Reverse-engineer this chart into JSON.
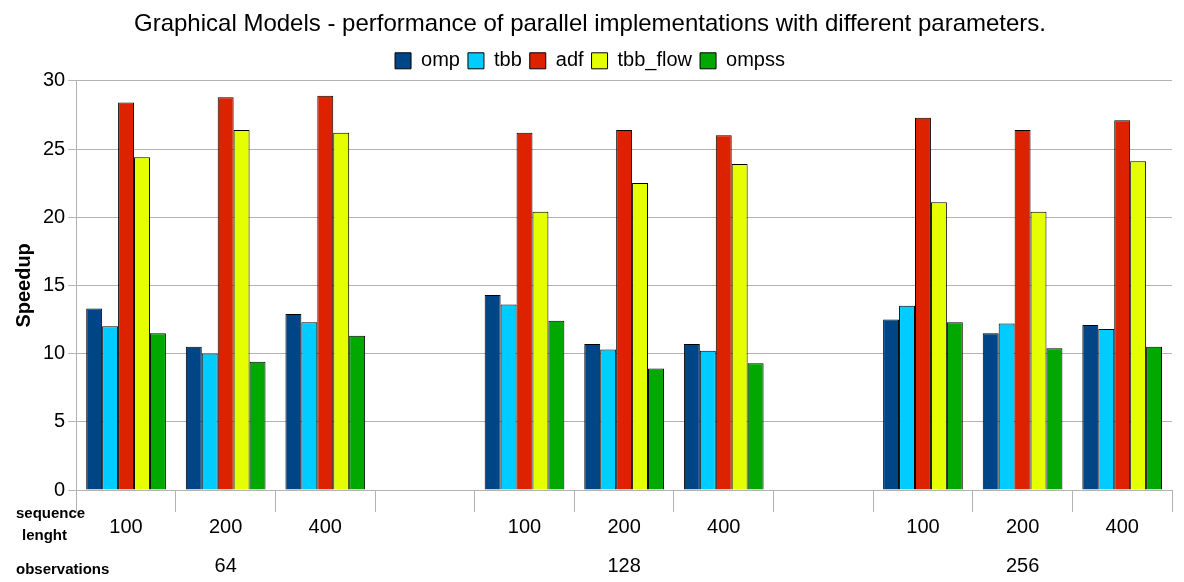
{
  "chart_data": {
    "type": "bar",
    "title": "Graphical Models - performance of parallel implementations with different parameters.",
    "ylabel": "Speedup",
    "categories": [
      "100",
      "200",
      "400",
      null,
      "100",
      "200",
      "400",
      null,
      "100",
      "200",
      "400"
    ],
    "series": [
      {
        "name": "omp",
        "color": "#004586",
        "values": [
          13.3,
          10.5,
          12.9,
          null,
          14.3,
          10.7,
          10.7,
          null,
          12.5,
          11.5,
          12.1
        ]
      },
      {
        "name": "tbb",
        "color": "#00ccff",
        "values": [
          12.0,
          10.0,
          12.3,
          null,
          13.6,
          10.3,
          10.2,
          null,
          13.5,
          12.2,
          11.8
        ]
      },
      {
        "name": "adf",
        "color": "#dd2200",
        "values": [
          28.4,
          28.8,
          28.9,
          null,
          26.2,
          26.4,
          26.0,
          null,
          27.3,
          26.4,
          27.1
        ]
      },
      {
        "name": "tbb_flow",
        "color": "#e6ff00",
        "values": [
          24.4,
          26.4,
          26.2,
          null,
          20.4,
          22.5,
          23.9,
          null,
          21.1,
          20.4,
          24.1
        ]
      },
      {
        "name": "ompss",
        "color": "#00a800",
        "values": [
          11.5,
          9.4,
          11.3,
          null,
          12.4,
          8.9,
          9.3,
          null,
          12.3,
          10.4,
          10.5
        ]
      }
    ],
    "ylim": [
      0,
      30
    ],
    "yticks": [
      0,
      5,
      10,
      15,
      20,
      25,
      30
    ],
    "grid": "y",
    "legend": "top",
    "annotations": [
      "sequence lenght",
      "observations",
      "64",
      "128",
      "256"
    ]
  }
}
